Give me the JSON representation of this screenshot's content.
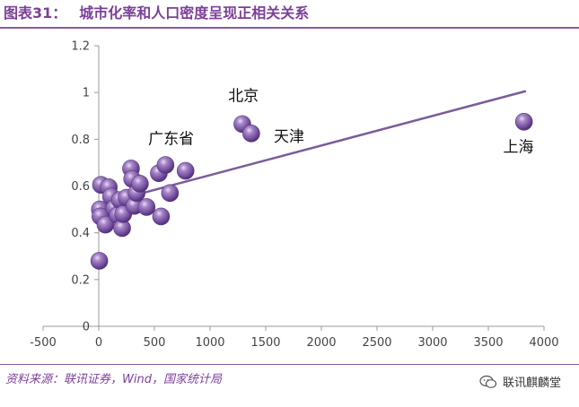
{
  "header": {
    "figure_number": "图表31：",
    "title": "城市化率和人口密度呈现正相关关系"
  },
  "footer": {
    "source": "资料来源：联讯证券，Wind，国家统计局",
    "brand": "联讯麒麟堂",
    "brand_icon": "wechat-icon"
  },
  "colors": {
    "accent": "#7b3f99",
    "marker": "#7e57a8",
    "trendline": "#7a5c99",
    "axis": "#9a9a9a"
  },
  "chart_data": {
    "type": "scatter",
    "title": "",
    "xlabel": "",
    "ylabel": "",
    "xlim": [
      -500,
      4000
    ],
    "ylim": [
      0,
      1.2
    ],
    "x_ticks": [
      -500,
      0,
      500,
      1000,
      1500,
      2000,
      2500,
      3000,
      3500,
      4000
    ],
    "y_ticks": [
      0,
      0.2,
      0.4,
      0.6,
      0.8,
      1,
      1.2
    ],
    "grid": false,
    "legend": "none",
    "points": [
      {
        "x": 5,
        "y": 0.28
      },
      {
        "x": 10,
        "y": 0.5
      },
      {
        "x": 15,
        "y": 0.47
      },
      {
        "x": 20,
        "y": 0.605
      },
      {
        "x": 60,
        "y": 0.435
      },
      {
        "x": 90,
        "y": 0.595
      },
      {
        "x": 110,
        "y": 0.555
      },
      {
        "x": 140,
        "y": 0.505
      },
      {
        "x": 170,
        "y": 0.475
      },
      {
        "x": 190,
        "y": 0.54
      },
      {
        "x": 210,
        "y": 0.42
      },
      {
        "x": 220,
        "y": 0.48
      },
      {
        "x": 250,
        "y": 0.55
      },
      {
        "x": 290,
        "y": 0.675
      },
      {
        "x": 300,
        "y": 0.63
      },
      {
        "x": 320,
        "y": 0.515
      },
      {
        "x": 340,
        "y": 0.57
      },
      {
        "x": 370,
        "y": 0.61
      },
      {
        "x": 430,
        "y": 0.51
      },
      {
        "x": 540,
        "y": 0.655
      },
      {
        "x": 560,
        "y": 0.47
      },
      {
        "x": 600,
        "y": 0.69
      },
      {
        "x": 640,
        "y": 0.57
      },
      {
        "x": 780,
        "y": 0.665
      },
      {
        "x": 1290,
        "y": 0.865
      },
      {
        "x": 1370,
        "y": 0.825
      },
      {
        "x": 3820,
        "y": 0.875
      }
    ],
    "annotations": [
      {
        "text": "北京",
        "x": 1300,
        "y": 0.965
      },
      {
        "text": "天津",
        "x": 1710,
        "y": 0.79
      },
      {
        "text": "广东省",
        "x": 650,
        "y": 0.78
      },
      {
        "text": "上海",
        "x": 3770,
        "y": 0.745
      }
    ],
    "trendline": {
      "x": [
        0,
        3830
      ],
      "y": [
        0.52,
        1.005
      ]
    }
  }
}
